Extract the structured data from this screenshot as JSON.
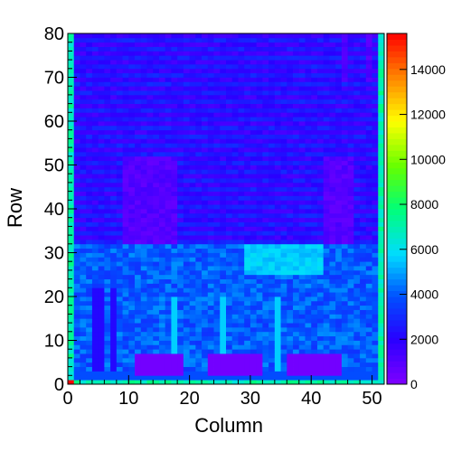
{
  "chart_data": {
    "type": "heatmap",
    "title": "",
    "xlabel": "Column",
    "ylabel": "Row",
    "xlim": [
      0,
      52
    ],
    "ylim": [
      0,
      80
    ],
    "x_ticks": [
      0,
      10,
      20,
      30,
      40,
      50
    ],
    "y_ticks": [
      0,
      10,
      20,
      30,
      40,
      50,
      60,
      70,
      80
    ],
    "colorbar": {
      "min": 0,
      "max": 15600,
      "ticks": [
        0,
        2000,
        4000,
        6000,
        8000,
        10000,
        12000,
        14000
      ],
      "colormap": "rainbow (violet-blue-cyan-green-yellow-red)"
    },
    "cells": {
      "columns": 52,
      "rows": 80,
      "description_of_values": "counts per (column,row) cell",
      "edge_column_value": 7000,
      "upper_block_rows": [
        32,
        80
      ],
      "upper_block_base": 1800,
      "upper_block_dark_rows_value": 1000,
      "lower_block_rows": [
        0,
        32
      ],
      "lower_block_base": 4000,
      "low_rects": [
        {
          "col_range": [
            11,
            19
          ],
          "row_range": [
            2,
            7
          ],
          "value": 300
        },
        {
          "col_range": [
            23,
            32
          ],
          "row_range": [
            2,
            7
          ],
          "value": 300
        },
        {
          "col_range": [
            36,
            45
          ],
          "row_range": [
            2,
            7
          ],
          "value": 300
        }
      ],
      "hot_corner": {
        "col": 0,
        "row": 0,
        "value": 15600
      }
    }
  }
}
